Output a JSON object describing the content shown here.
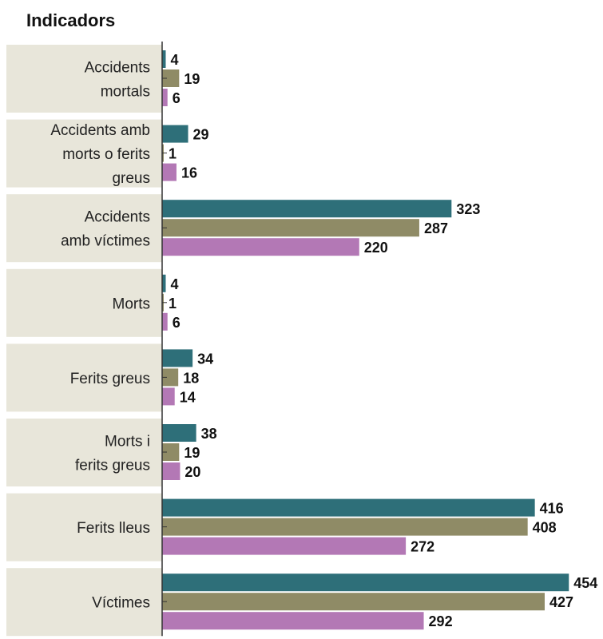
{
  "header": {
    "title": "Indicadors"
  },
  "chart_data": {
    "type": "bar",
    "orientation": "horizontal",
    "title": "Indicadors",
    "categories": [
      [
        "Accidents",
        "mortals"
      ],
      [
        "Accidents amb",
        "morts o ferits",
        "greus"
      ],
      [
        "Accidents",
        "amb víctimes"
      ],
      [
        "Morts"
      ],
      [
        "Ferits greus"
      ],
      [
        "Morts i",
        "ferits greus"
      ],
      [
        "Ferits lleus"
      ],
      [
        "Víctimes"
      ]
    ],
    "series": [
      {
        "color": "#2e6f79",
        "values": [
          4,
          29,
          323,
          4,
          34,
          38,
          416,
          454
        ]
      },
      {
        "color": "#8f8b66",
        "values": [
          19,
          1,
          287,
          1,
          18,
          19,
          408,
          427
        ]
      },
      {
        "color": "#b378b5",
        "values": [
          6,
          16,
          220,
          6,
          14,
          20,
          272,
          292
        ]
      }
    ],
    "xlim": [
      0,
      460
    ],
    "grid": false,
    "legend": "none",
    "colors": {
      "category_band": "#e8e6da",
      "axis": "#333333"
    }
  }
}
